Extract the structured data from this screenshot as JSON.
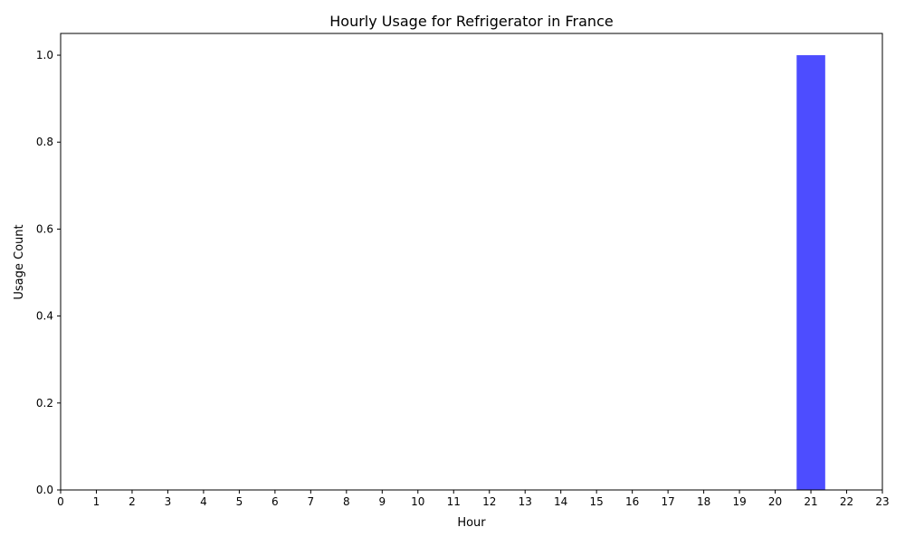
{
  "chart_data": {
    "type": "bar",
    "title": "Hourly Usage for Refrigerator in France",
    "xlabel": "Hour",
    "ylabel": "Usage Count",
    "categories": [
      "0",
      "1",
      "2",
      "3",
      "4",
      "5",
      "6",
      "7",
      "8",
      "9",
      "10",
      "11",
      "12",
      "13",
      "14",
      "15",
      "16",
      "17",
      "18",
      "19",
      "20",
      "21",
      "22",
      "23"
    ],
    "values": [
      0,
      0,
      0,
      0,
      0,
      0,
      0,
      0,
      0,
      0,
      0,
      0,
      0,
      0,
      0,
      0,
      0,
      0,
      0,
      0,
      0,
      1,
      0,
      0
    ],
    "xlim": [
      0,
      23
    ],
    "ylim": [
      0,
      1.05
    ],
    "yticks": [
      "0.0",
      "0.2",
      "0.4",
      "0.6",
      "0.8",
      "1.0"
    ],
    "bar_color": "#4d4dff",
    "grid": false,
    "legend": "none"
  }
}
